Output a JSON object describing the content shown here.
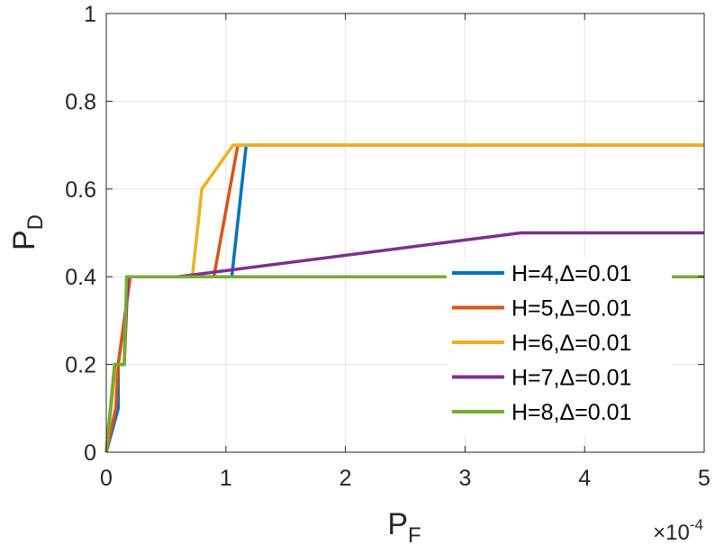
{
  "chart_data": {
    "type": "line",
    "xlabel": {
      "main": "P",
      "sub": "F"
    },
    "ylabel": {
      "main": "P",
      "sub": "D"
    },
    "x_exponent": {
      "prefix": "×10",
      "power": "-4"
    },
    "xlim": [
      0,
      5
    ],
    "ylim": [
      0,
      1
    ],
    "x_ticks": [
      0,
      1,
      2,
      3,
      4,
      5
    ],
    "x_tick_labels": [
      "0",
      "1",
      "2",
      "3",
      "4",
      "5"
    ],
    "y_ticks": [
      0,
      0.2,
      0.4,
      0.6,
      0.8,
      1
    ],
    "y_tick_labels": [
      "0",
      "0.2",
      "0.4",
      "0.6",
      "0.8",
      "1"
    ],
    "grid": true,
    "legend_position": "right",
    "series": [
      {
        "name": "H=4,Δ=0.01",
        "color": "#0072BD",
        "x": [
          0,
          0.1,
          0.1,
          0.15,
          0.2,
          0.2,
          1.05,
          1.17,
          1.17,
          5
        ],
        "y": [
          0,
          0.1,
          0.2,
          0.3,
          0.4,
          0.4,
          0.4,
          0.7,
          0.7,
          0.7
        ]
      },
      {
        "name": "H=5,Δ=0.01",
        "color": "#D95319",
        "x": [
          0,
          0.08,
          0.1,
          0.15,
          0.2,
          0.9,
          1.1,
          5
        ],
        "y": [
          0,
          0.1,
          0.2,
          0.3,
          0.4,
          0.4,
          0.7,
          0.7
        ]
      },
      {
        "name": "H=6,Δ=0.01",
        "color": "#EDB120",
        "x": [
          0,
          0.08,
          0.15,
          0.18,
          0.72,
          0.8,
          1.06,
          5
        ],
        "y": [
          0,
          0.2,
          0.2,
          0.4,
          0.4,
          0.6,
          0.7,
          0.7
        ]
      },
      {
        "name": "H=7,Δ=0.01",
        "color": "#7E2F8E",
        "x": [
          0,
          0.07,
          0.15,
          0.18,
          0.6,
          3.47,
          5
        ],
        "y": [
          0,
          0.2,
          0.2,
          0.4,
          0.4,
          0.5,
          0.5
        ]
      },
      {
        "name": "H=8,Δ=0.01",
        "color": "#77AC30",
        "x": [
          0,
          0.07,
          0.15,
          0.17,
          5
        ],
        "y": [
          0,
          0.2,
          0.2,
          0.4,
          0.4
        ]
      }
    ]
  }
}
